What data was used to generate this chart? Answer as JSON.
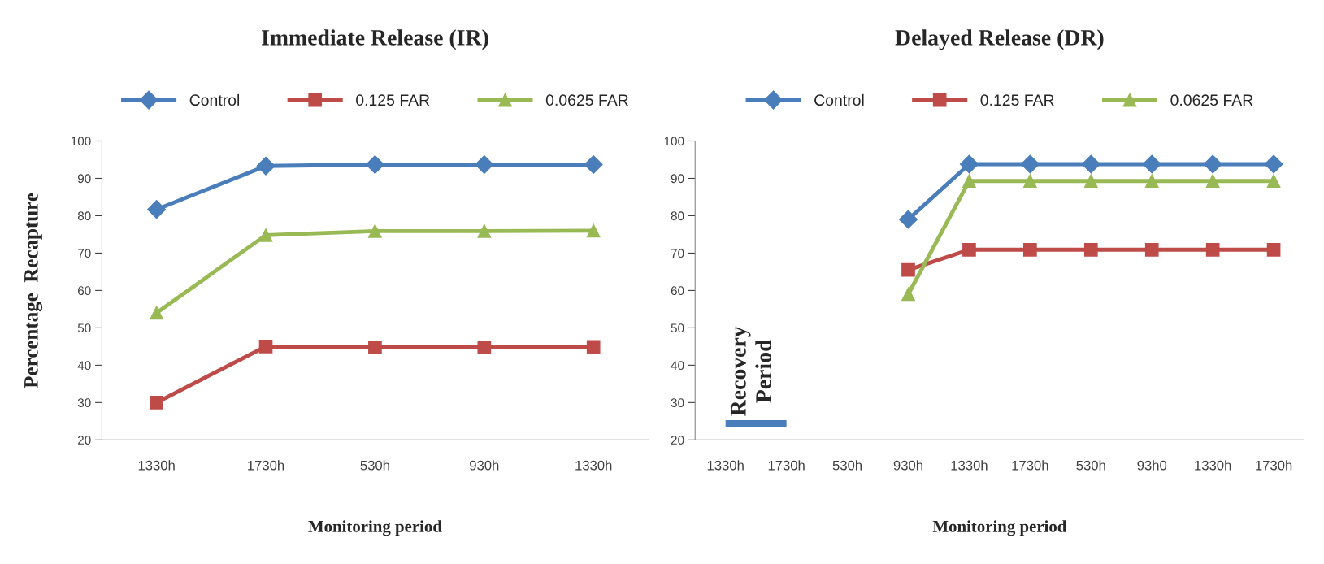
{
  "chart_data": [
    {
      "type": "line",
      "title": "Immediate Release (IR)",
      "xlabel": "Monitoring period",
      "ylabel": "Percentage  Recapture",
      "categories": [
        "1330h",
        "1730h",
        "530h",
        "930h",
        "1330h"
      ],
      "series": [
        {
          "name": "Control",
          "color": "#4a7ebb",
          "marker": "diamond",
          "values": [
            81.7,
            93.3,
            93.7,
            93.7,
            93.7
          ]
        },
        {
          "name": "0.125 FAR",
          "color": "#be4b48",
          "marker": "square",
          "values": [
            30,
            45,
            44.8,
            44.8,
            44.9
          ]
        },
        {
          "name": "0.0625 FAR",
          "color": "#98b954",
          "marker": "triangle",
          "values": [
            54,
            74.8,
            75.9,
            75.9,
            76
          ]
        }
      ],
      "ylim": [
        20,
        100
      ],
      "yticks": [
        20,
        30,
        40,
        50,
        60,
        70,
        80,
        90,
        100
      ],
      "grid": false,
      "legend": "top"
    },
    {
      "type": "line",
      "title": "Delayed Release (DR)",
      "xlabel": "Monitoring period",
      "categories": [
        "1330h",
        "1730h",
        "530h",
        "930h",
        "1330h",
        "1730h",
        "530h",
        "93h0",
        "1330h",
        "1730h"
      ],
      "series": [
        {
          "name": "Control",
          "color": "#4a7ebb",
          "marker": "diamond",
          "values": [
            null,
            null,
            null,
            79,
            93.8,
            93.8,
            93.8,
            93.8,
            93.8,
            93.8
          ]
        },
        {
          "name": "0.125 FAR",
          "color": "#be4b48",
          "marker": "square",
          "values": [
            null,
            null,
            null,
            65.5,
            70.9,
            70.9,
            70.9,
            70.9,
            70.9,
            70.9
          ]
        },
        {
          "name": "0.0625 FAR",
          "color": "#98b954",
          "marker": "triangle",
          "values": [
            null,
            null,
            null,
            59,
            89.3,
            89.3,
            89.3,
            89.3,
            89.3,
            89.3
          ]
        },
        {
          "color": "#4a7ebb",
          "marker": "none",
          "values": [
            24.4,
            24.4,
            null,
            null,
            null,
            null,
            null,
            null,
            null,
            null
          ]
        }
      ],
      "annotations": [
        {
          "text": "Recovery\nPeriod",
          "x": "1730h",
          "y": 24.3
        }
      ],
      "ylim": [
        20,
        100
      ],
      "yticks": [
        20,
        30,
        40,
        50,
        60,
        70,
        80,
        90,
        100
      ],
      "grid": false,
      "legend": "top"
    }
  ]
}
